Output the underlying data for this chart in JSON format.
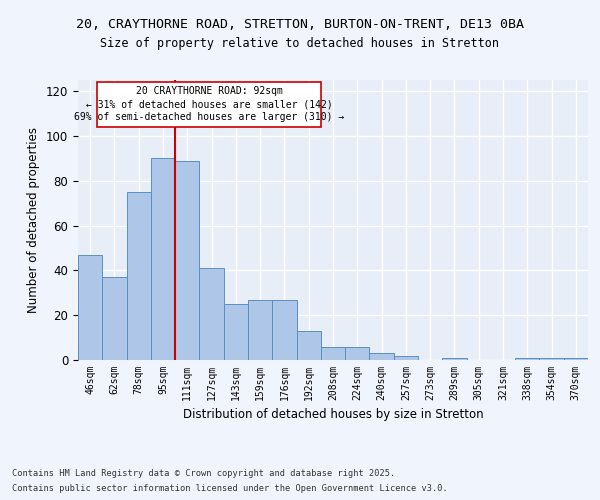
{
  "title": "20, CRAYTHORNE ROAD, STRETTON, BURTON-ON-TRENT, DE13 0BA",
  "subtitle": "Size of property relative to detached houses in Stretton",
  "xlabel": "Distribution of detached houses by size in Stretton",
  "ylabel": "Number of detached properties",
  "categories": [
    "46sqm",
    "62sqm",
    "78sqm",
    "95sqm",
    "111sqm",
    "127sqm",
    "143sqm",
    "159sqm",
    "176sqm",
    "192sqm",
    "208sqm",
    "224sqm",
    "240sqm",
    "257sqm",
    "273sqm",
    "289sqm",
    "305sqm",
    "321sqm",
    "338sqm",
    "354sqm",
    "370sqm"
  ],
  "values": [
    47,
    37,
    75,
    90,
    89,
    41,
    25,
    27,
    27,
    13,
    6,
    6,
    3,
    2,
    0,
    1,
    0,
    0,
    1,
    1,
    1
  ],
  "bar_color": "#aec6e8",
  "bar_edge_color": "#5a8fc2",
  "bg_color": "#e8eef8",
  "grid_color": "#ffffff",
  "property_label": "20 CRAYTHORNE ROAD: 92sqm",
  "pct_smaller": 31,
  "n_smaller": 142,
  "pct_larger_semi": 69,
  "n_larger_semi": 310,
  "vline_color": "#cc0000",
  "vline_x_index": 3.5,
  "annotation_box_color": "#cc0000",
  "footer1": "Contains HM Land Registry data © Crown copyright and database right 2025.",
  "footer2": "Contains public sector information licensed under the Open Government Licence v3.0.",
  "ylim": [
    0,
    125
  ],
  "yticks": [
    0,
    20,
    40,
    60,
    80,
    100,
    120
  ],
  "fig_bg": "#f0f4fc"
}
